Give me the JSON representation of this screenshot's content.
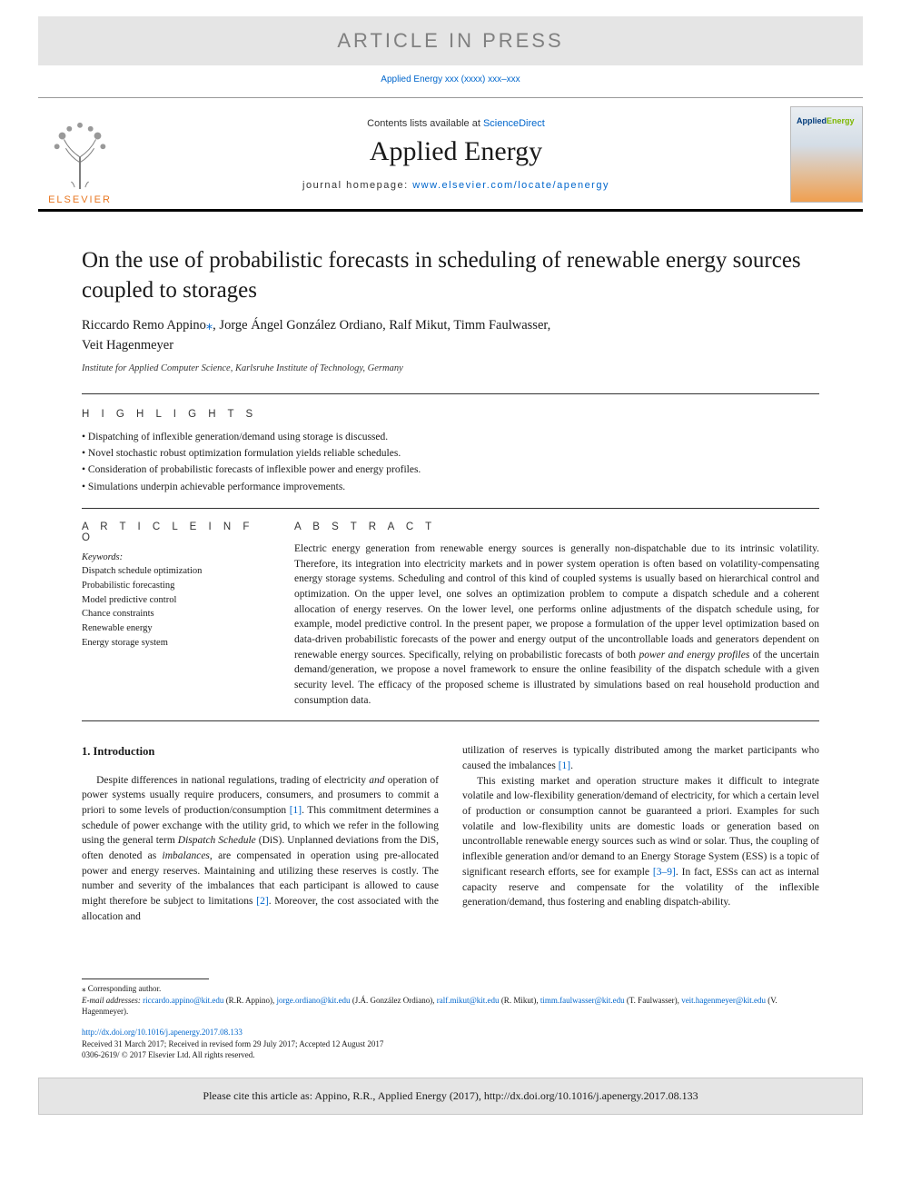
{
  "banner": "ARTICLE IN PRESS",
  "journal_ref_top": "Applied Energy xxx (xxxx) xxx–xxx",
  "header": {
    "contents_prefix": "Contents lists available at ",
    "contents_link": "ScienceDirect",
    "journal_title": "Applied Energy",
    "homepage_prefix": "journal homepage: ",
    "homepage_link": "www.elsevier.com/locate/apenergy",
    "elsevier": "ELSEVIER",
    "cover_brand_a": "Applied",
    "cover_brand_b": "Energy"
  },
  "article": {
    "title": "On the use of probabilistic forecasts in scheduling of renewable energy sources coupled to storages",
    "authors_line1": "Riccardo Remo Appino",
    "corr_mark": "⁎",
    "authors_line1b": ", Jorge Ángel González Ordiano, Ralf Mikut, Timm Faulwasser,",
    "authors_line2": "Veit Hagenmeyer",
    "affiliation": "Institute for Applied Computer Science, Karlsruhe Institute of Technology, Germany"
  },
  "highlights": {
    "label": "H I G H L I G H T S",
    "items": [
      "Dispatching of inflexible generation/demand using storage is discussed.",
      "Novel stochastic robust optimization formulation yields reliable schedules.",
      "Consideration of probabilistic forecasts of inflexible power and energy profiles.",
      "Simulations underpin achievable performance improvements."
    ]
  },
  "article_info": {
    "label": "A R T I C L E   I N F O",
    "keywords_label": "Keywords:",
    "keywords": [
      "Dispatch schedule optimization",
      "Probabilistic forecasting",
      "Model predictive control",
      "Chance constraints",
      "Renewable energy",
      "Energy storage system"
    ]
  },
  "abstract": {
    "label": "A B S T R A C T",
    "text": "Electric energy generation from renewable energy sources is generally non-dispatchable due to its intrinsic volatility. Therefore, its integration into electricity markets and in power system operation is often based on volatility-compensating energy storage systems. Scheduling and control of this kind of coupled systems is usually based on hierarchical control and optimization. On the upper level, one solves an optimization problem to compute a dispatch schedule and a coherent allocation of energy reserves. On the lower level, one performs online adjustments of the dispatch schedule using, for example, model predictive control. In the present paper, we propose a formulation of the upper level optimization based on data-driven probabilistic forecasts of the power and energy output of the uncontrollable loads and generators dependent on renewable energy sources. Specifically, relying on probabilistic forecasts of both ",
    "text_ital": "power and energy profiles",
    "text2": " of the uncertain demand/generation, we propose a novel framework to ensure the online feasibility of the dispatch schedule with a given security level. The efficacy of the proposed scheme is illustrated by simulations based on real household production and consumption data."
  },
  "body": {
    "heading": "1.  Introduction",
    "col1_p1a": "Despite differences in national regulations, trading of electricity ",
    "col1_p1a_ital": "and",
    "col1_p1b": " operation of power systems usually require producers, consumers, and prosumers to commit a priori to some levels of production/consumption ",
    "col1_ref1": "[1]",
    "col1_p1c": ". This commitment determines a schedule of power exchange with the utility grid, to which we refer in the following using the general term ",
    "col1_ital1": "Dispatch Schedule",
    "col1_p1d": " (DiS). Unplanned deviations from the DiS, often denoted as ",
    "col1_ital2": "imbalances",
    "col1_p1e": ", are compensated in operation using pre-allocated power and energy reserves. Maintaining and utilizing these reserves is costly. The number and severity of the imbalances that each participant is allowed to cause might therefore be subject to limitations ",
    "col1_ref2": "[2]",
    "col1_p1f": ". Moreover, the cost associated with the allocation and",
    "col2_p1a": "utilization of reserves is typically distributed among the market participants who caused the imbalances ",
    "col2_ref1": "[1]",
    "col2_p1b": ".",
    "col2_p2": "This existing market and operation structure makes it difficult to integrate volatile and low-flexibility generation/demand of electricity, for which a certain level of production or consumption cannot be guaranteed a priori. Examples for such volatile and low-flexibility units are domestic loads or generation based on uncontrollable renewable energy sources such as wind or solar. Thus, the coupling of inflexible generation and/or demand to an Energy Storage System (ESS) is a topic of significant research efforts, see for example ",
    "col2_ref2": "[3–9]",
    "col2_p2b": ". In fact, ESSs can act as internal capacity reserve and compensate for the volatility of the inflexible generation/demand, thus fostering and enabling dispatch-ability."
  },
  "footnotes": {
    "corr": "⁎ Corresponding author.",
    "email_label": "E-mail addresses: ",
    "emails": [
      {
        "addr": "riccardo.appino@kit.edu",
        "name": " (R.R. Appino), "
      },
      {
        "addr": "jorge.ordiano@kit.edu",
        "name": " (J.Á. González Ordiano), "
      },
      {
        "addr": "ralf.mikut@kit.edu",
        "name": " (R. Mikut), "
      },
      {
        "addr": "timm.faulwasser@kit.edu",
        "name": " (T. Faulwasser), "
      },
      {
        "addr": "veit.hagenmeyer@kit.edu",
        "name": " (V. Hagenmeyer)."
      }
    ]
  },
  "doi": {
    "link": "http://dx.doi.org/10.1016/j.apenergy.2017.08.133",
    "received": "Received 31 March 2017; Received in revised form 29 July 2017; Accepted 12 August 2017",
    "copyright": "0306-2619/ © 2017 Elsevier Ltd. All rights reserved."
  },
  "cite": "Please cite this article as: Appino, R.R., Applied Energy (2017), http://dx.doi.org/10.1016/j.apenergy.2017.08.133",
  "colors": {
    "link": "#0066cc",
    "banner_bg": "#e5e5e5",
    "banner_text": "#808080",
    "elsevier_orange": "#e87722",
    "rule": "#333333"
  }
}
